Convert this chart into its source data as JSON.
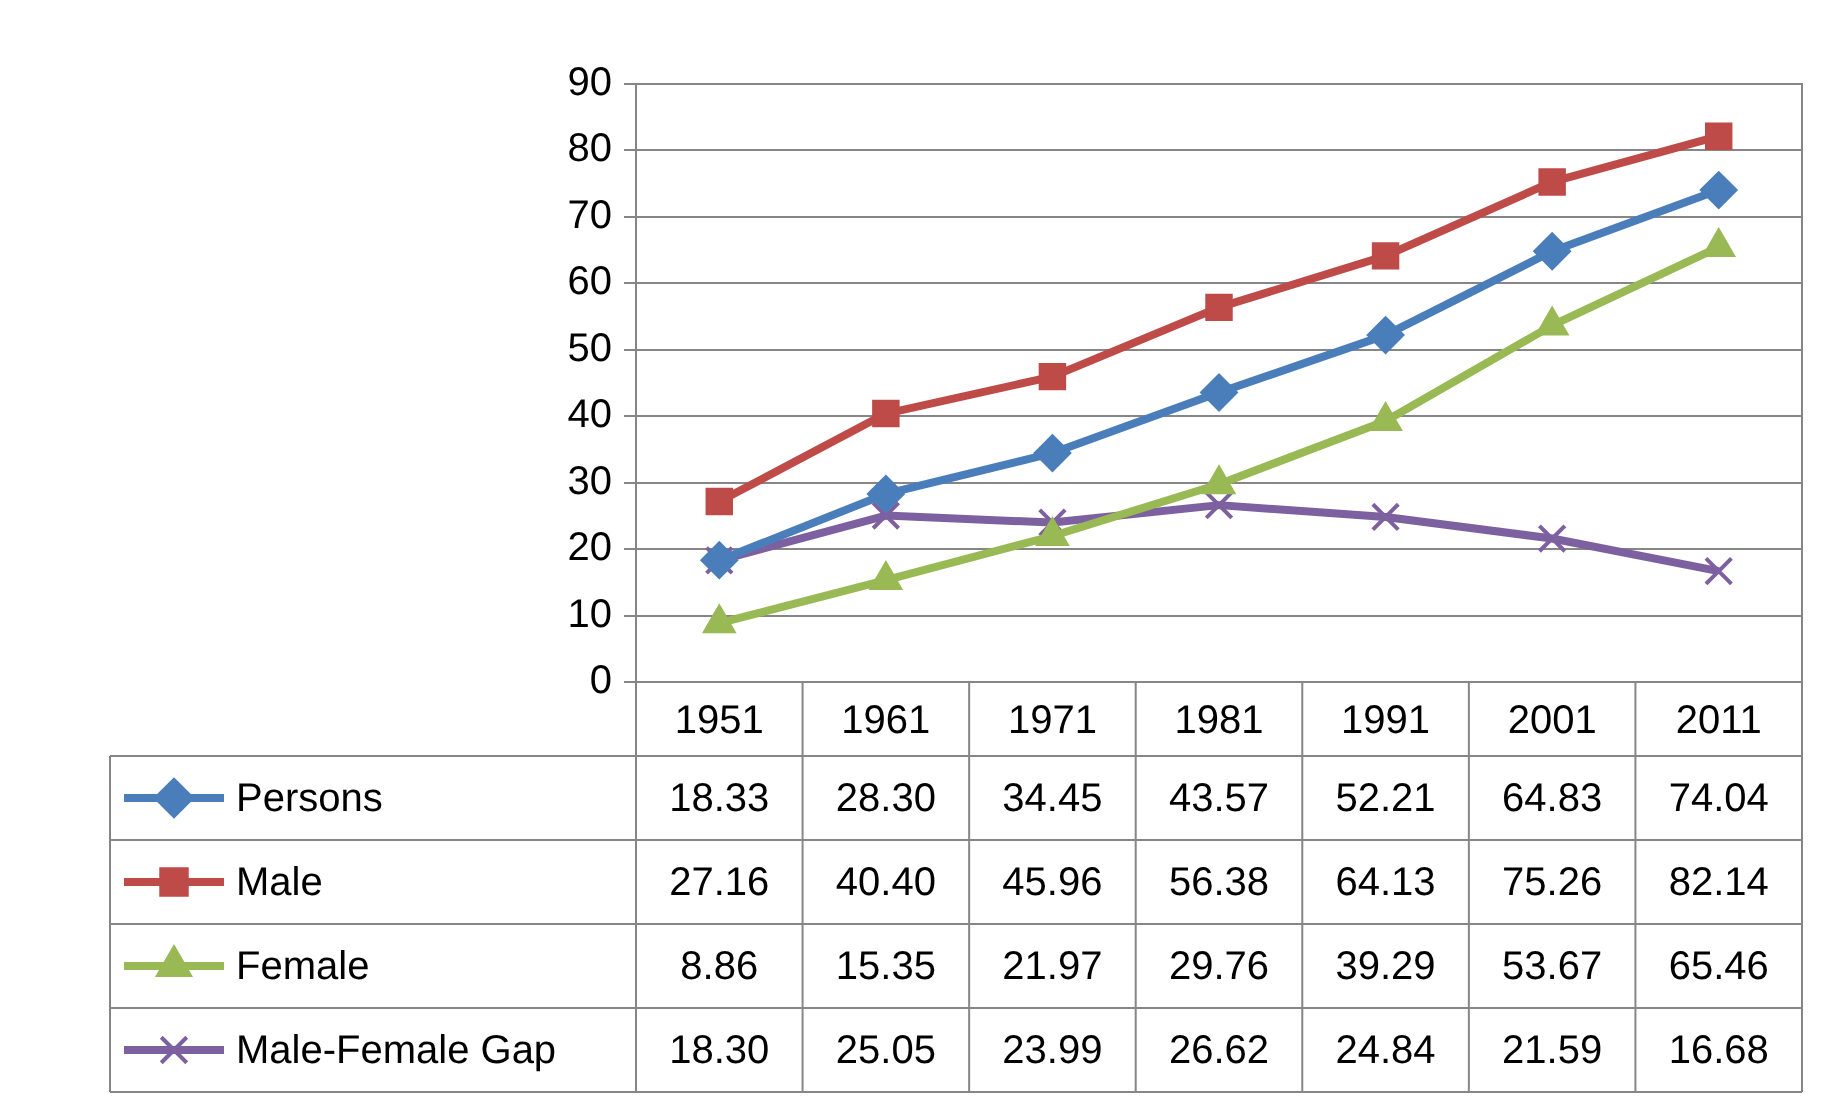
{
  "chart_data": {
    "type": "line",
    "categories": [
      "1951",
      "1961",
      "1971",
      "1981",
      "1991",
      "2001",
      "2011"
    ],
    "series": [
      {
        "name": "Persons",
        "color": "#4a7ebb",
        "marker": "diamond",
        "values": [
          18.33,
          28.3,
          34.45,
          43.57,
          52.21,
          64.83,
          74.04
        ],
        "value_labels": [
          "18.33",
          "28.30",
          "34.45",
          "43.57",
          "52.21",
          "64.83",
          "74.04"
        ]
      },
      {
        "name": "Male",
        "color": "#be4b48",
        "marker": "square",
        "values": [
          27.16,
          40.4,
          45.96,
          56.38,
          64.13,
          75.26,
          82.14
        ],
        "value_labels": [
          "27.16",
          "40.40",
          "45.96",
          "56.38",
          "64.13",
          "75.26",
          "82.14"
        ]
      },
      {
        "name": "Female",
        "color": "#98b954",
        "marker": "triangle",
        "values": [
          8.86,
          15.35,
          21.97,
          29.76,
          39.29,
          53.67,
          65.46
        ],
        "value_labels": [
          "8.86",
          "15.35",
          "21.97",
          "29.76",
          "39.29",
          "53.67",
          "65.46"
        ]
      },
      {
        "name": "Male-Female Gap",
        "color": "#7d60a0",
        "marker": "cross",
        "values": [
          18.3,
          25.05,
          23.99,
          26.62,
          24.84,
          21.59,
          16.68
        ],
        "value_labels": [
          "18.30",
          "25.05",
          "23.99",
          "26.62",
          "24.84",
          "21.59",
          "16.68"
        ]
      }
    ],
    "ylim": [
      0,
      90
    ],
    "yticks": [
      0,
      10,
      20,
      30,
      40,
      50,
      60,
      70,
      80,
      90
    ],
    "grid": "y",
    "legend": "bottom",
    "line_style": "solid"
  }
}
